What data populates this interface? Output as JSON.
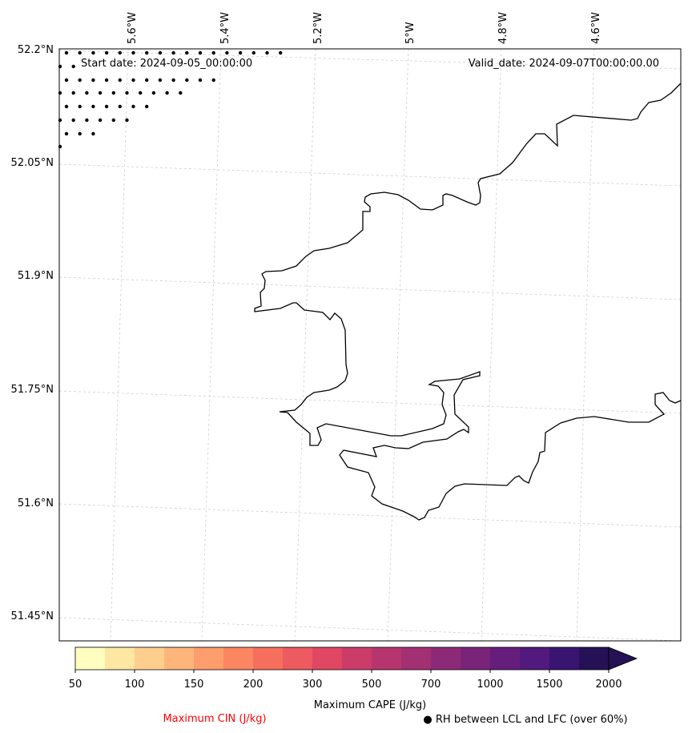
{
  "map": {
    "start_date": "Start date: 2024-09-05_00:00:00",
    "valid_date": "Valid_date: 2024-09-07T00:00:00.00",
    "lon_labels": [
      "5.6°W",
      "5.4°W",
      "5.2°W",
      "5°W",
      "4.8°W",
      "4.6°W"
    ],
    "lat_labels": [
      "52.2°N",
      "52.05°N",
      "51.9°N",
      "51.75°N",
      "51.6°N",
      "51.45°N"
    ]
  },
  "colorbar": {
    "colors": [
      "#fffdbf",
      "#fee6a3",
      "#fece8e",
      "#feb57c",
      "#fe9d6d",
      "#fc8661",
      "#f66f5c",
      "#ed5a5f",
      "#df4762",
      "#cc3c68",
      "#b7356e",
      "#a23073",
      "#8d2a77",
      "#792479",
      "#661e7c",
      "#511a7c",
      "#3a1471",
      "#251155"
    ],
    "tick_labels": [
      "50",
      "100",
      "150",
      "200",
      "300",
      "500",
      "700",
      "1000",
      "1500",
      "2000"
    ],
    "label": "Maximum CAPE (J/kg)"
  },
  "legend": {
    "cin_label": "Maximum CIN (J/kg)",
    "cin_color": "#ff0000",
    "rh_label": "● RH between LCL and LFC (over 60%)"
  }
}
